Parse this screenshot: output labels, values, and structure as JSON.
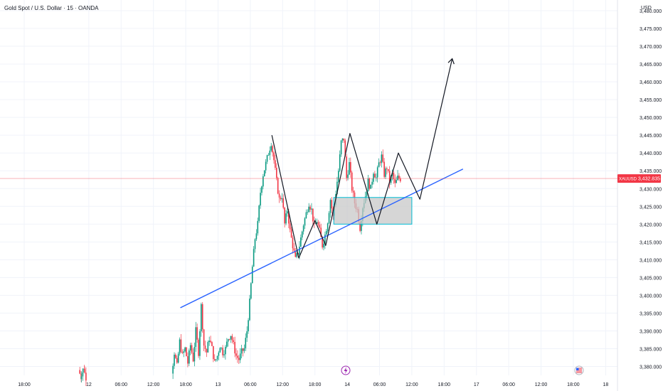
{
  "header": {
    "title": "Gold Spot / U.S. Dollar · 15 · OANDA",
    "currency": "USD"
  },
  "price_tag": {
    "symbol": "XAUUSD",
    "value": "3,432.835",
    "color": "#f23645"
  },
  "colors": {
    "up": "#089981",
    "down": "#f23645",
    "trendline": "#2962ff",
    "zone_fill": "#c8c8c8",
    "zone_border": "#00bcd4",
    "projection": "#131722",
    "grid": "#f0f3fa"
  },
  "icons": [
    "lightning-event-icon",
    "us-flag-event-icon"
  ],
  "chart_data": {
    "type": "candlestick",
    "title": "Gold Spot / U.S. Dollar · 15 · OANDA",
    "ylabel": "USD",
    "ylim": [
      3377.5,
      3483
    ],
    "y_ticks": [
      3380,
      3385,
      3390,
      3395,
      3400,
      3405,
      3410,
      3415,
      3420,
      3425,
      3430,
      3435,
      3440,
      3445,
      3450,
      3455,
      3460,
      3465,
      3470,
      3475,
      3480
    ],
    "y_tick_labels": [
      "3,380.000",
      "3,385.000",
      "3,390.000",
      "3,395.000",
      "3,400.000",
      "3,405.000",
      "3,410.000",
      "3,415.000",
      "3,420.000",
      "3,425.000",
      "3,430.000",
      "3,435.000",
      "3,440.000",
      "3,445.000",
      "3,450.000",
      "3,455.000",
      "3,460.000",
      "3,465.000",
      "3,470.000",
      "3,475.000",
      "3,480.000"
    ],
    "x_ticks": [
      {
        "h": 18,
        "label": "18:00"
      },
      {
        "h": 30,
        "label": "12"
      },
      {
        "h": 36,
        "label": "06:00"
      },
      {
        "h": 42,
        "label": "12:00"
      },
      {
        "h": 48,
        "label": "18:00"
      },
      {
        "h": 54,
        "label": "13"
      },
      {
        "h": 60,
        "label": "06:00"
      },
      {
        "h": 66,
        "label": "12:00"
      },
      {
        "h": 72,
        "label": "18:00"
      },
      {
        "h": 78,
        "label": "14"
      },
      {
        "h": 84,
        "label": "06:00"
      },
      {
        "h": 90,
        "label": "12:00"
      },
      {
        "h": 96,
        "label": "18:00"
      },
      {
        "h": 102,
        "label": "17"
      },
      {
        "h": 108,
        "label": "06:00"
      },
      {
        "h": 114,
        "label": "12:00"
      },
      {
        "h": 120,
        "label": "18:00"
      },
      {
        "h": 126,
        "label": "18"
      }
    ],
    "x_range_hours": [
      13.5,
      128.2
    ],
    "last_price": 3432.835,
    "price_path": [
      [
        45.5,
        3378
      ],
      [
        46.0,
        3384
      ],
      [
        46.5,
        3380
      ],
      [
        47.0,
        3387
      ],
      [
        47.5,
        3383
      ],
      [
        48.0,
        3385
      ],
      [
        48.5,
        3381
      ],
      [
        49.0,
        3386
      ],
      [
        49.5,
        3382
      ],
      [
        50.0,
        3390
      ],
      [
        50.5,
        3384
      ],
      [
        51.0,
        3397
      ],
      [
        51.5,
        3386
      ],
      [
        52.0,
        3384
      ],
      [
        52.5,
        3388
      ],
      [
        53.0,
        3385
      ],
      [
        53.5,
        3381
      ],
      [
        54.0,
        3383
      ],
      [
        54.5,
        3386
      ],
      [
        55.0,
        3384
      ],
      [
        55.5,
        3385
      ],
      [
        56.0,
        3388
      ],
      [
        56.5,
        3389
      ],
      [
        57.0,
        3386
      ],
      [
        57.5,
        3383
      ],
      [
        58.0,
        3382
      ],
      [
        58.5,
        3384
      ],
      [
        59.0,
        3385
      ],
      [
        59.5,
        3390
      ],
      [
        60.0,
        3398
      ],
      [
        60.5,
        3408
      ],
      [
        61.0,
        3416
      ],
      [
        61.5,
        3420
      ],
      [
        62.0,
        3429
      ],
      [
        62.5,
        3434
      ],
      [
        63.0,
        3437
      ],
      [
        63.5,
        3440
      ],
      [
        64.0,
        3443
      ],
      [
        64.5,
        3438
      ],
      [
        65.0,
        3432
      ],
      [
        65.5,
        3427
      ],
      [
        66.0,
        3428
      ],
      [
        66.5,
        3420
      ],
      [
        67.0,
        3424
      ],
      [
        67.5,
        3418
      ],
      [
        68.0,
        3414
      ],
      [
        68.5,
        3410
      ],
      [
        69.0,
        3412
      ],
      [
        69.5,
        3416
      ],
      [
        70.0,
        3420
      ],
      [
        70.5,
        3423
      ],
      [
        71.0,
        3426
      ],
      [
        71.5,
        3424
      ],
      [
        72.0,
        3419
      ],
      [
        72.5,
        3421
      ],
      [
        73.0,
        3418
      ],
      [
        73.5,
        3414
      ],
      [
        74.0,
        3417
      ],
      [
        74.5,
        3421
      ],
      [
        75.0,
        3427
      ],
      [
        75.5,
        3422
      ],
      [
        76.0,
        3429
      ],
      [
        76.5,
        3435
      ],
      [
        77.0,
        3443
      ],
      [
        77.5,
        3444
      ],
      [
        78.0,
        3433
      ],
      [
        78.5,
        3437
      ],
      [
        79.0,
        3430
      ],
      [
        79.5,
        3426
      ],
      [
        80.0,
        3424
      ],
      [
        80.5,
        3419
      ],
      [
        81.0,
        3425
      ],
      [
        81.5,
        3428
      ],
      [
        82.0,
        3432
      ],
      [
        82.5,
        3430
      ],
      [
        83.0,
        3435
      ],
      [
        83.5,
        3433
      ],
      [
        84.0,
        3437
      ],
      [
        84.5,
        3439
      ],
      [
        85.0,
        3434
      ],
      [
        85.5,
        3436
      ],
      [
        86.0,
        3432
      ],
      [
        86.5,
        3434
      ],
      [
        87.0,
        3431
      ],
      [
        87.5,
        3433
      ],
      [
        88.0,
        3432.8
      ]
    ],
    "pre_path": [
      [
        28.2,
        3379
      ],
      [
        28.5,
        3377.8
      ],
      [
        28.8,
        3378.2
      ],
      [
        29.1,
        3379.2
      ],
      [
        29.4,
        3377.9
      ]
    ],
    "annotations": {
      "trendline": [
        [
          47.0,
          3396.5
        ],
        [
          99.5,
          3435.5
        ]
      ],
      "consolidation_zone": {
        "x": [
          75.5,
          90.0
        ],
        "y": [
          3420.0,
          3427.5
        ]
      },
      "projection_path": [
        [
          64.0,
          3445.0
        ],
        [
          69.0,
          3410.5
        ],
        [
          72.0,
          3421.0
        ],
        [
          74.0,
          3414.0
        ],
        [
          78.5,
          3445.5
        ],
        [
          83.5,
          3420.0
        ],
        [
          87.5,
          3440.0
        ],
        [
          91.5,
          3427.0
        ],
        [
          97.5,
          3466.5
        ]
      ]
    }
  }
}
